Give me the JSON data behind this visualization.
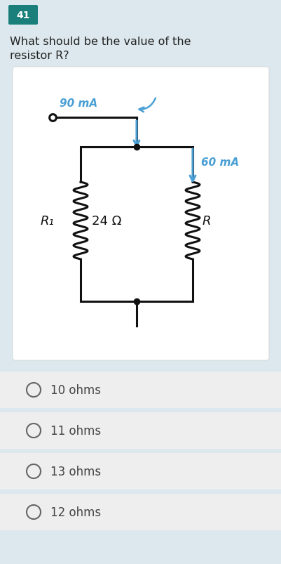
{
  "bg_main": "#dce8ed",
  "bg_circuit_card": "#ffffff",
  "bg_option": "#eeeeee",
  "question_number": "41",
  "question_number_bg": "#1a7f7a",
  "question_number_color": "#ffffff",
  "question_text_line1": "What should be the value of the",
  "question_text_line2": "resistor R?",
  "question_text_color": "#222222",
  "circuit_label_90mA": "90 mA",
  "circuit_label_60mA": "60 mA",
  "circuit_label_R1": "R₁",
  "circuit_label_24": "24 Ω",
  "circuit_label_R": "R",
  "arrow_color": "#4a9fd4",
  "wire_color": "#111111",
  "options": [
    "10 ohms",
    "11 ohms",
    "13 ohms",
    "12 ohms"
  ],
  "option_text_color": "#444444",
  "option_circle_color": "#666666"
}
